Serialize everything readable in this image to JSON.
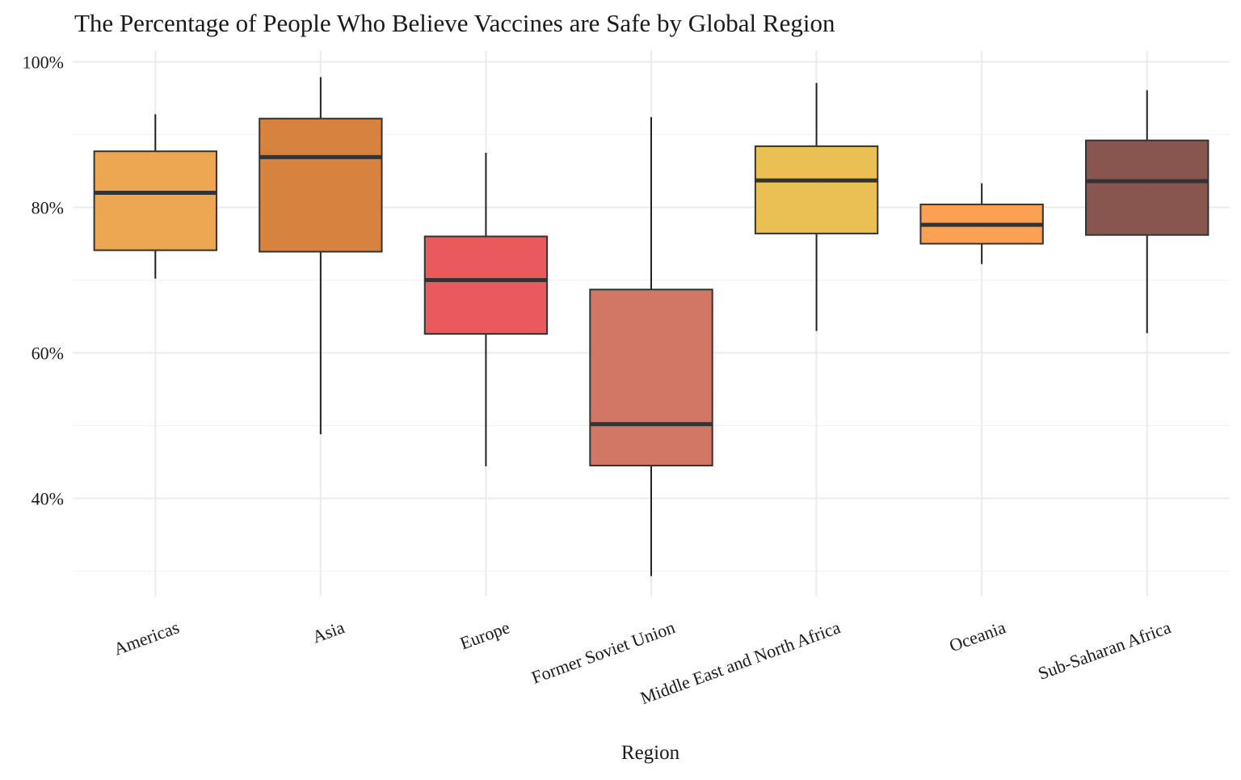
{
  "chart_data": {
    "type": "box",
    "title": "The Percentage of People Who Believe Vaccines are Safe by Global Region",
    "xlabel": "Region",
    "ylabel": "",
    "ylim": [
      0.265,
      1.015
    ],
    "y_ticks": [
      0.4,
      0.6,
      0.8,
      1.0
    ],
    "y_tick_labels": [
      "40%",
      "60%",
      "80%",
      "100%"
    ],
    "y_minor_ticks": [
      0.3,
      0.5,
      0.7,
      0.9
    ],
    "grid": true,
    "legend": "none",
    "x_tick_rotation": "angled",
    "categories": [
      "Americas",
      "Asia",
      "Europe",
      "Former Soviet Union",
      "Middle East and North Africa",
      "Oceania",
      "Sub-Saharan Africa"
    ],
    "boxes": [
      {
        "category": "Americas",
        "min": 0.702,
        "q1": 0.741,
        "median": 0.82,
        "q3": 0.877,
        "max": 0.928,
        "color": "#EBA043"
      },
      {
        "category": "Asia",
        "min": 0.488,
        "q1": 0.739,
        "median": 0.869,
        "q3": 0.922,
        "max": 0.979,
        "color": "#D4782F"
      },
      {
        "category": "Europe",
        "min": 0.444,
        "q1": 0.626,
        "median": 0.7,
        "q3": 0.76,
        "max": 0.875,
        "color": "#E84C4F"
      },
      {
        "category": "Former Soviet Union",
        "min": 0.293,
        "q1": 0.445,
        "median": 0.502,
        "q3": 0.687,
        "max": 0.924,
        "color": "#CE6B58"
      },
      {
        "category": "Middle East and North Africa",
        "min": 0.63,
        "q1": 0.764,
        "median": 0.837,
        "q3": 0.884,
        "max": 0.971,
        "color": "#E8BB46"
      },
      {
        "category": "Oceania",
        "min": 0.722,
        "q1": 0.75,
        "median": 0.776,
        "q3": 0.804,
        "max": 0.833,
        "color": "#FC9945"
      },
      {
        "category": "Sub-Saharan Africa",
        "min": 0.627,
        "q1": 0.762,
        "median": 0.836,
        "q3": 0.892,
        "max": 0.961,
        "color": "#7E4840"
      }
    ],
    "colors": {
      "gridline": "#EBEBEB",
      "outline": "#333333",
      "whisker": "#222222"
    }
  }
}
